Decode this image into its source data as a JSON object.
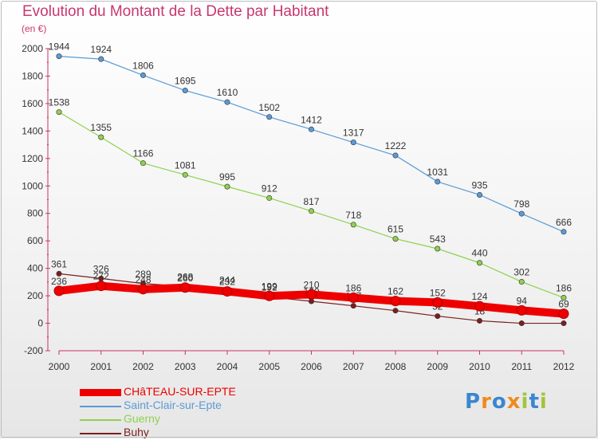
{
  "title": "Evolution du Montant de la Dette par Habitant",
  "unit": "(en €)",
  "logo": {
    "text": "Proxiti",
    "letters": [
      {
        "ch": "P",
        "color": "#3a86d0"
      },
      {
        "ch": "r",
        "color": "#f08a1c"
      },
      {
        "ch": "o",
        "color": "#3a86d0"
      },
      {
        "ch": "x",
        "color": "#f08a1c"
      },
      {
        "ch": "i",
        "color": "#a3c43c"
      },
      {
        "ch": "t",
        "color": "#3a86d0"
      },
      {
        "ch": "i",
        "color": "#a3c43c"
      }
    ]
  },
  "chart_data": {
    "type": "line",
    "title": "Evolution du Montant de la Dette par Habitant",
    "ylabel": "(en €)",
    "ylim": [
      -200,
      2000
    ],
    "yticks": [
      -200,
      0,
      200,
      400,
      600,
      800,
      1000,
      1200,
      1400,
      1600,
      1800,
      2000
    ],
    "categories": [
      "2000",
      "2001",
      "2002",
      "2003",
      "2004",
      "2005",
      "2006",
      "2007",
      "2008",
      "2009",
      "2010",
      "2011",
      "2012"
    ],
    "grid": false,
    "legend_position": "bottom-left",
    "series": [
      {
        "name": "Saint-Clair-sur-Epte",
        "color": "#5b9bd5",
        "values": [
          1944,
          1924,
          1806,
          1695,
          1610,
          1502,
          1412,
          1317,
          1222,
          1031,
          935,
          798,
          666
        ],
        "labels_shown": true
      },
      {
        "name": "Guerny",
        "color": "#8fd14f",
        "values": [
          1538,
          1355,
          1166,
          1081,
          995,
          912,
          817,
          718,
          615,
          543,
          440,
          302,
          186
        ],
        "labels_shown": true
      },
      {
        "name": "Buhy",
        "color": "#7a1f1f",
        "values": [
          361,
          326,
          289,
          268,
          244,
          192,
          160,
          127,
          92,
          52,
          18,
          0,
          0
        ],
        "labels_shown": [
          true,
          true,
          true,
          true,
          true,
          true,
          true,
          true,
          true,
          true,
          true,
          false,
          false
        ]
      },
      {
        "name": "CHâTEAU-SUR-EPTE",
        "color": "#ee0000",
        "values": [
          236,
          272,
          248,
          260,
          232,
          199,
          210,
          186,
          162,
          152,
          124,
          94,
          69
        ],
        "labels_shown": true,
        "emphasis": true
      }
    ]
  }
}
